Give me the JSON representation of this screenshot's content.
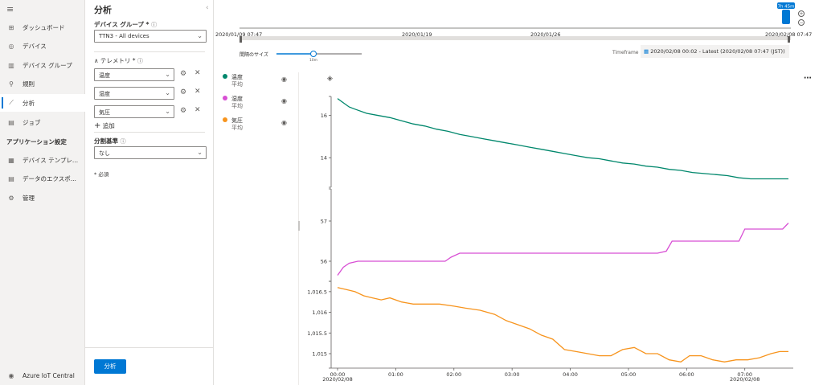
{
  "nav": {
    "items": [
      {
        "label": "ダッシュボード",
        "icon": "dashboard-icon",
        "glyph": "⊞"
      },
      {
        "label": "デバイス",
        "icon": "devices-icon",
        "glyph": "◎"
      },
      {
        "label": "デバイス グループ",
        "icon": "device-groups-icon",
        "glyph": "▥"
      },
      {
        "label": "規則",
        "icon": "rules-icon",
        "glyph": "⚲"
      },
      {
        "label": "分析",
        "icon": "analytics-icon",
        "glyph": "⟋"
      },
      {
        "label": "ジョブ",
        "icon": "jobs-icon",
        "glyph": "▤"
      }
    ],
    "section_header": "アプリケーション設定",
    "settings_items": [
      {
        "label": "デバイス テンプレ...",
        "icon": "device-templates-icon",
        "glyph": "▦"
      },
      {
        "label": "データのエクスポ...",
        "icon": "data-export-icon",
        "glyph": "▤"
      },
      {
        "label": "管理",
        "icon": "administration-icon",
        "glyph": "⚙"
      }
    ],
    "footer": "Azure IoT Central"
  },
  "panel": {
    "title": "分析",
    "device_group_label": "デバイス グループ *",
    "device_group_value": "TTN3 - All devices",
    "telemetry_label": "テレメトリ *",
    "telemetry": [
      "温度",
      "湿度",
      "気圧"
    ],
    "add_label": "追加",
    "split_label": "分割基準",
    "split_value": "なし",
    "required_note": "* 必須",
    "analyze_button": "分析"
  },
  "timeline": {
    "start": "2020/01/09 07:47",
    "mid1": "2020/01/19",
    "mid2": "2020/01/26",
    "end": "2020/02/08 07:47",
    "badge": "7h 45m",
    "interval_label": "間隔のサイズ",
    "interval_value": "10m",
    "timeframe_label": "Timeframe",
    "timeframe_value": "2020/02/08 00:02 - Latest (2020/02/08 07:47 (JST))"
  },
  "legend": [
    {
      "name": "温度",
      "agg": "平均",
      "color": "#00876c"
    },
    {
      "name": "湿度",
      "agg": "平均",
      "color": "#d84fd4"
    },
    {
      "name": "気圧",
      "agg": "平均",
      "color": "#f7941d"
    }
  ],
  "chart_data": {
    "type": "line",
    "x_ticks": [
      "00:00",
      "01:00",
      "02:00",
      "03:00",
      "04:00",
      "05:00",
      "06:00",
      "07:00"
    ],
    "x_date_labels": [
      "2020/02/08",
      "2020/02/08"
    ],
    "series": [
      {
        "name": "温度",
        "agg": "平均",
        "color": "#00876c",
        "yticks": [
          "16",
          "14"
        ],
        "ylim": [
          12.6,
          16.9
        ],
        "x": [
          0,
          0.1,
          0.2,
          0.3,
          0.5,
          0.7,
          0.9,
          1.1,
          1.3,
          1.5,
          1.7,
          1.9,
          2.1,
          2.3,
          2.5,
          2.7,
          2.9,
          3.1,
          3.3,
          3.5,
          3.7,
          3.9,
          4.1,
          4.3,
          4.5,
          4.7,
          4.9,
          5.1,
          5.3,
          5.5,
          5.7,
          5.9,
          6.1,
          6.3,
          6.5,
          6.7,
          6.9,
          7.1,
          7.3,
          7.5,
          7.75
        ],
        "y": [
          16.8,
          16.6,
          16.4,
          16.3,
          16.1,
          16.0,
          15.9,
          15.75,
          15.6,
          15.5,
          15.35,
          15.25,
          15.1,
          15.0,
          14.9,
          14.8,
          14.7,
          14.6,
          14.5,
          14.4,
          14.3,
          14.2,
          14.1,
          14.0,
          13.95,
          13.85,
          13.75,
          13.7,
          13.6,
          13.55,
          13.45,
          13.4,
          13.3,
          13.25,
          13.2,
          13.15,
          13.05,
          13.0,
          13.0,
          13.0,
          13.0
        ]
      },
      {
        "name": "湿度",
        "agg": "平均",
        "color": "#d84fd4",
        "yticks": [
          "57",
          "56"
        ],
        "ylim": [
          55.5,
          57.8
        ],
        "x": [
          0,
          0.1,
          0.2,
          0.35,
          0.5,
          1,
          1.5,
          1.85,
          1.95,
          2.1,
          2.5,
          3,
          3.5,
          4,
          4.5,
          5,
          5.5,
          5.65,
          5.75,
          6,
          6.5,
          6.9,
          7,
          7.2,
          7.5,
          7.65,
          7.75
        ],
        "y": [
          55.65,
          55.85,
          55.95,
          56.0,
          56.0,
          56.0,
          56.0,
          56.0,
          56.1,
          56.2,
          56.2,
          56.2,
          56.2,
          56.2,
          56.2,
          56.2,
          56.2,
          56.25,
          56.5,
          56.5,
          56.5,
          56.5,
          56.8,
          56.8,
          56.8,
          56.8,
          56.95
        ]
      },
      {
        "name": "気圧",
        "agg": "平均",
        "color": "#f7941d",
        "yticks": [
          "1,016.5",
          "1,016",
          "1,015.5",
          "1,015"
        ],
        "ylim": [
          1014.65,
          1016.75
        ],
        "x": [
          0,
          0.15,
          0.3,
          0.45,
          0.6,
          0.75,
          0.9,
          1.1,
          1.3,
          1.5,
          1.75,
          2,
          2.2,
          2.45,
          2.7,
          2.9,
          3.1,
          3.3,
          3.5,
          3.7,
          3.9,
          4.1,
          4.3,
          4.5,
          4.7,
          4.9,
          5.1,
          5.3,
          5.5,
          5.7,
          5.9,
          6.05,
          6.25,
          6.45,
          6.65,
          6.85,
          7.05,
          7.25,
          7.45,
          7.6,
          7.75
        ],
        "y": [
          1016.6,
          1016.55,
          1016.5,
          1016.4,
          1016.35,
          1016.3,
          1016.35,
          1016.25,
          1016.2,
          1016.2,
          1016.2,
          1016.15,
          1016.1,
          1016.05,
          1015.95,
          1015.8,
          1015.7,
          1015.6,
          1015.45,
          1015.35,
          1015.1,
          1015.05,
          1015.0,
          1014.95,
          1014.95,
          1015.1,
          1015.15,
          1015.0,
          1015.0,
          1014.85,
          1014.8,
          1014.95,
          1014.95,
          1014.85,
          1014.8,
          1014.85,
          1014.85,
          1014.9,
          1015.0,
          1015.05,
          1015.05
        ]
      }
    ]
  }
}
